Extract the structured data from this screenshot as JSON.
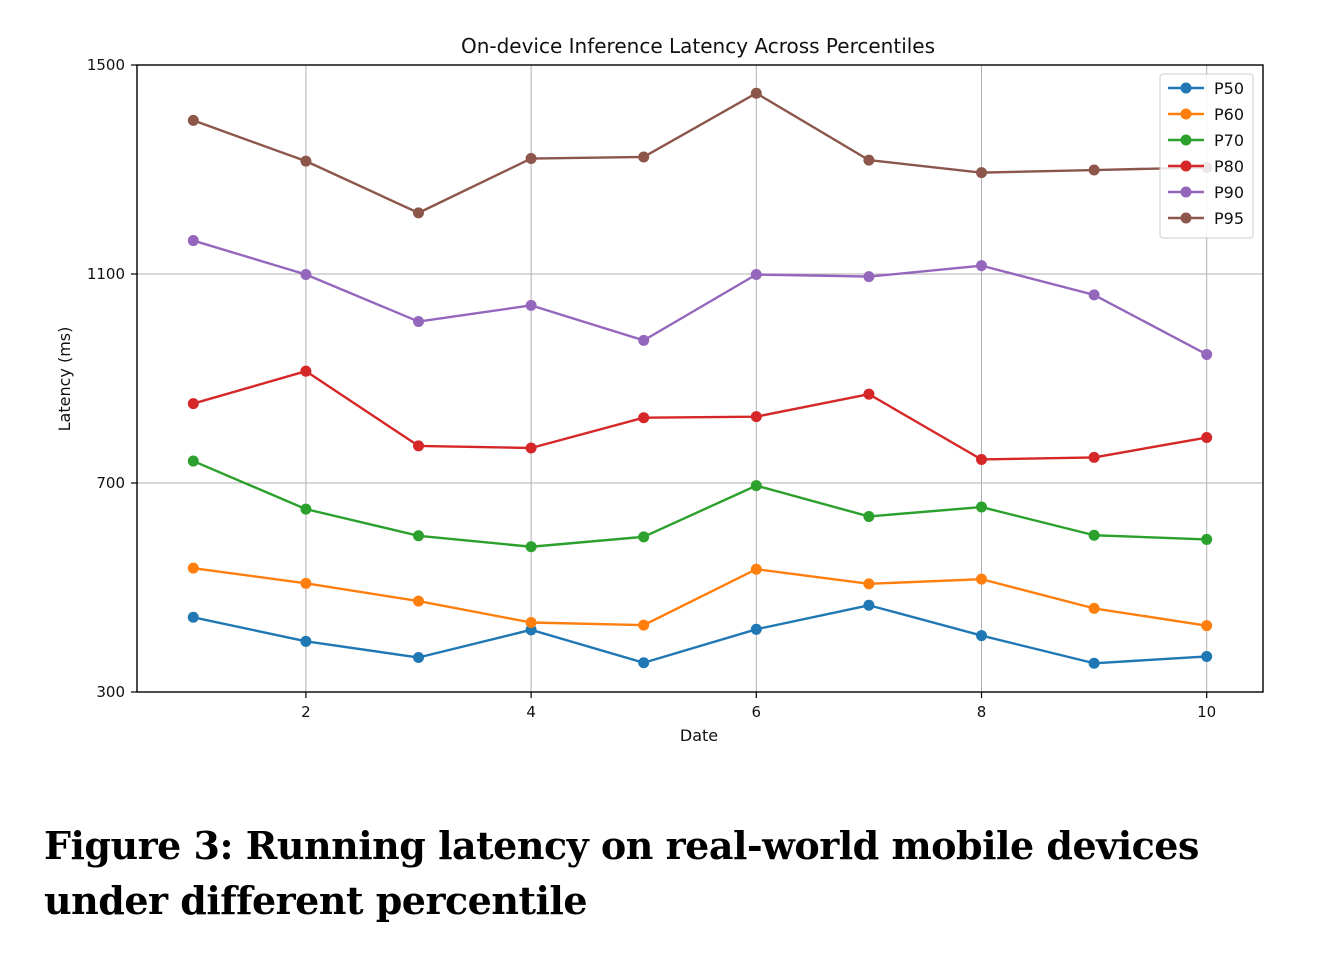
{
  "chart_data": {
    "type": "line",
    "title": "On-device Inference Latency Across Percentiles",
    "xlabel": "Date",
    "ylabel": "Latency (ms)",
    "x": [
      1,
      2,
      3,
      4,
      5,
      6,
      7,
      8,
      9,
      10
    ],
    "xticks": [
      2,
      4,
      6,
      8,
      10
    ],
    "yticks": [
      300,
      700,
      1100,
      1500
    ],
    "xlim": [
      0.5,
      10.5
    ],
    "ylim": [
      300,
      1500
    ],
    "grid": true,
    "legend_position": "top-right",
    "marker": "circle",
    "series": [
      {
        "name": "P50",
        "color": "#1f77b4",
        "values": [
          443,
          397,
          366,
          419,
          356,
          420,
          466,
          408,
          355,
          368
        ]
      },
      {
        "name": "P60",
        "color": "#ff7f0e",
        "values": [
          537,
          508,
          474,
          433,
          428,
          535,
          507,
          516,
          460,
          427
        ]
      },
      {
        "name": "P70",
        "color": "#2ca02c",
        "values": [
          742,
          650,
          599,
          578,
          597,
          695,
          636,
          654,
          600,
          592
        ]
      },
      {
        "name": "P80",
        "color": "#d62728",
        "values": [
          852,
          914,
          771,
          767,
          825,
          827,
          870,
          745,
          749,
          787
        ]
      },
      {
        "name": "P90",
        "color": "#9467bd",
        "values": [
          1164,
          1099,
          1009,
          1040,
          973,
          1099,
          1095,
          1116,
          1060,
          946
        ]
      },
      {
        "name": "P95",
        "color": "#8c564b",
        "values": [
          1394,
          1316,
          1217,
          1321,
          1324,
          1446,
          1318,
          1294,
          1299,
          1304
        ]
      }
    ]
  },
  "caption": {
    "text": "Figure 3: Running latency on real-world mobile devices under different percentile"
  }
}
